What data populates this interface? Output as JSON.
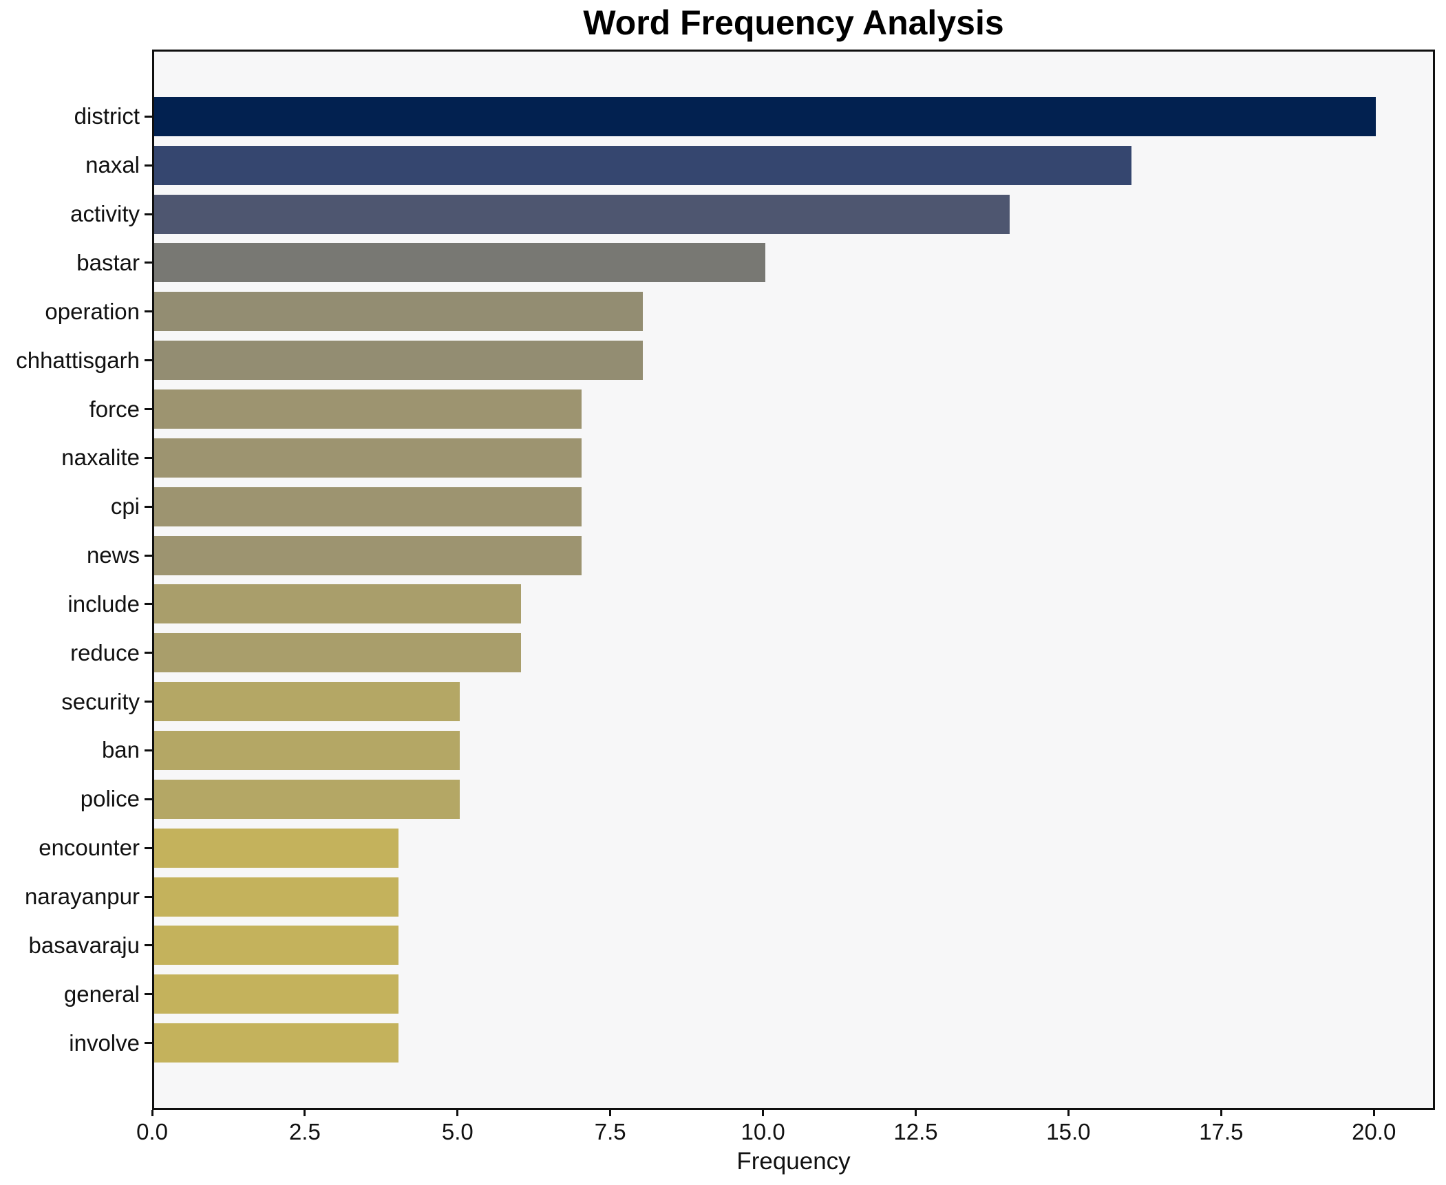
{
  "chart_data": {
    "type": "bar",
    "orientation": "horizontal",
    "title": "Word Frequency Analysis",
    "xlabel": "Frequency",
    "ylabel": "",
    "grid": false,
    "legend": false,
    "xlim": [
      0,
      21
    ],
    "x_tick_values": [
      0,
      2.5,
      5,
      7.5,
      10,
      12.5,
      15,
      17.5,
      20
    ],
    "x_tick_labels": [
      "0.0",
      "2.5",
      "5.0",
      "7.5",
      "10.0",
      "12.5",
      "15.0",
      "17.5",
      "20.0"
    ],
    "categories": [
      "district",
      "naxal",
      "activity",
      "bastar",
      "operation",
      "chhattisgarh",
      "force",
      "naxalite",
      "cpi",
      "news",
      "include",
      "reduce",
      "security",
      "ban",
      "police",
      "encounter",
      "narayanpur",
      "basavaraju",
      "general",
      "involve"
    ],
    "values": [
      20,
      16,
      14,
      10,
      8,
      8,
      7,
      7,
      7,
      7,
      6,
      6,
      5,
      5,
      5,
      4,
      4,
      4,
      4,
      4
    ],
    "bar_colors": [
      "#022150",
      "#35466f",
      "#4e5670",
      "#787873",
      "#938d72",
      "#938d72",
      "#9d9470",
      "#9d9470",
      "#9d9470",
      "#9d9470",
      "#a99e6b",
      "#a99e6b",
      "#b4a765",
      "#b4a765",
      "#b4a765",
      "#c4b25c",
      "#c4b25c",
      "#c4b25c",
      "#c4b25c",
      "#c4b25c"
    ]
  },
  "colors": {
    "figure_bg": "#ffffff",
    "plot_bg": "#f7f7f8",
    "spine": "#0f0f0f",
    "text": "#111111"
  }
}
